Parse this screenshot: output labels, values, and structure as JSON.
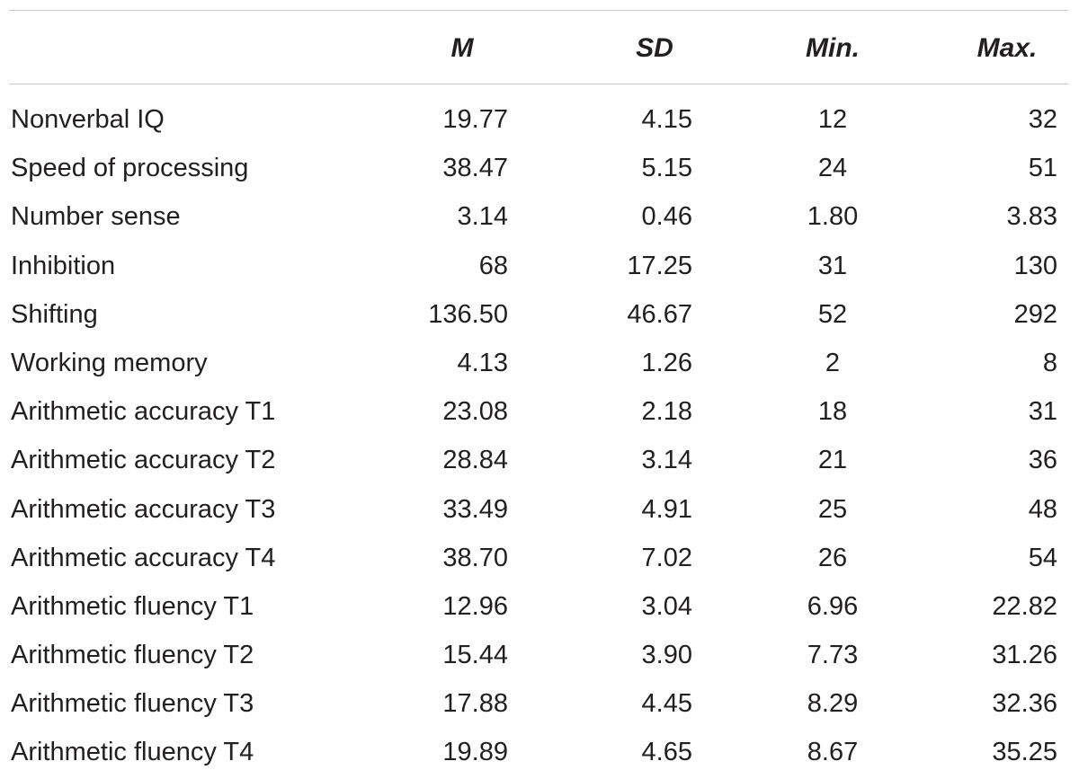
{
  "table": {
    "headers": {
      "label": "",
      "m": "M",
      "sd": "SD",
      "min": "Min.",
      "max": "Max."
    },
    "rows": [
      {
        "label": "Nonverbal IQ",
        "m": "19.77",
        "sd": "4.15",
        "min": "12",
        "max": "32"
      },
      {
        "label": "Speed of processing",
        "m": "38.47",
        "sd": "5.15",
        "min": "24",
        "max": "51"
      },
      {
        "label": "Number sense",
        "m": "3.14",
        "sd": "0.46",
        "min": "1.80",
        "max": "3.83"
      },
      {
        "label": "Inhibition",
        "m": "68",
        "sd": "17.25",
        "min": "31",
        "max": "130"
      },
      {
        "label": "Shifting",
        "m": "136.50",
        "sd": "46.67",
        "min": "52",
        "max": "292"
      },
      {
        "label": "Working memory",
        "m": "4.13",
        "sd": "1.26",
        "min": "2",
        "max": "8"
      },
      {
        "label": "Arithmetic accuracy T1",
        "m": "23.08",
        "sd": "2.18",
        "min": "18",
        "max": "31"
      },
      {
        "label": "Arithmetic accuracy T2",
        "m": "28.84",
        "sd": "3.14",
        "min": "21",
        "max": "36"
      },
      {
        "label": "Arithmetic accuracy T3",
        "m": "33.49",
        "sd": "4.91",
        "min": "25",
        "max": "48"
      },
      {
        "label": "Arithmetic accuracy T4",
        "m": "38.70",
        "sd": "7.02",
        "min": "26",
        "max": "54"
      },
      {
        "label": "Arithmetic fluency T1",
        "m": "12.96",
        "sd": "3.04",
        "min": "6.96",
        "max": "22.82"
      },
      {
        "label": "Arithmetic fluency T2",
        "m": "15.44",
        "sd": "3.90",
        "min": "7.73",
        "max": "31.26"
      },
      {
        "label": "Arithmetic fluency T3",
        "m": "17.88",
        "sd": "4.45",
        "min": "8.29",
        "max": "32.36"
      },
      {
        "label": "Arithmetic fluency T4",
        "m": "19.89",
        "sd": "4.65",
        "min": "8.67",
        "max": "35.25"
      }
    ]
  }
}
